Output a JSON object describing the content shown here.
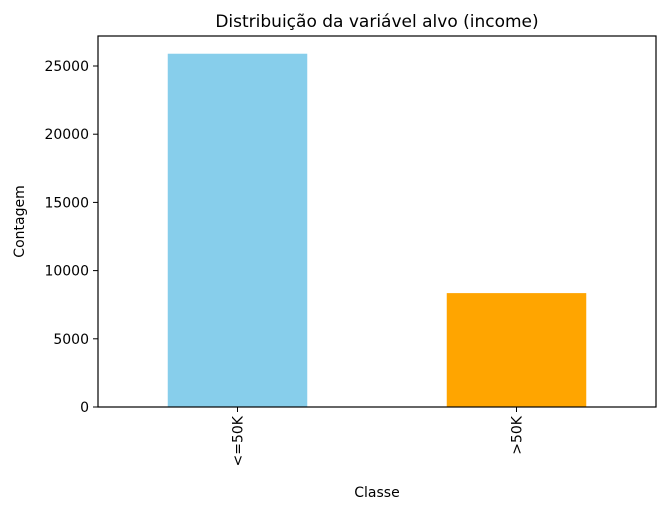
{
  "chart_data": {
    "type": "bar",
    "title": "Distribuição da variável alvo (income)",
    "xlabel": "Classe",
    "ylabel": "Contagem",
    "categories": [
      "<=50K",
      ">50K"
    ],
    "values": [
      25900,
      8350
    ],
    "colors": [
      "#87CEEB",
      "#FFA500"
    ],
    "ylim": [
      0,
      27200
    ],
    "yticks": [
      0,
      5000,
      10000,
      15000,
      20000,
      25000
    ],
    "ytick_labels": [
      "0",
      "5000",
      "10000",
      "15000",
      "20000",
      "25000"
    ],
    "grid": false,
    "legend": "none"
  }
}
